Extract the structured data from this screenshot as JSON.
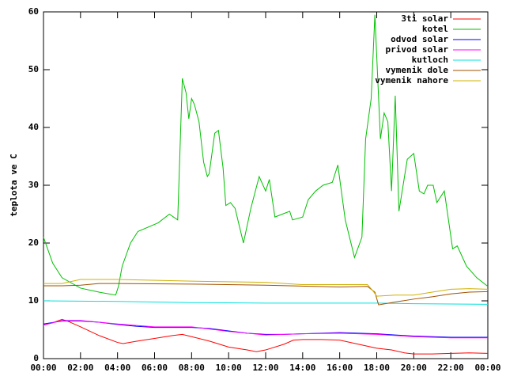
{
  "chart_data": {
    "type": "line",
    "y_label": "teplota ve C",
    "ylim": [
      0,
      60
    ],
    "yticks": [
      0,
      10,
      20,
      30,
      40,
      50,
      60
    ],
    "xlim": [
      0,
      24
    ],
    "xticks": [
      {
        "value": 0,
        "label": "00:00"
      },
      {
        "value": 2,
        "label": "02:00"
      },
      {
        "value": 4,
        "label": "04:00"
      },
      {
        "value": 6,
        "label": "06:00"
      },
      {
        "value": 8,
        "label": "08:00"
      },
      {
        "value": 10,
        "label": "10:00"
      },
      {
        "value": 12,
        "label": "12:00"
      },
      {
        "value": 14,
        "label": "14:00"
      },
      {
        "value": 16,
        "label": "16:00"
      },
      {
        "value": 18,
        "label": "18:00"
      },
      {
        "value": 20,
        "label": "20:00"
      },
      {
        "value": 22,
        "label": "22:00"
      },
      {
        "value": 24,
        "label": "00:00"
      }
    ],
    "legend": "top-right",
    "series": [
      {
        "name": "3ti solar",
        "color": "#ff0000",
        "x": [
          0,
          0.5,
          1,
          1.3,
          2,
          3,
          4,
          4.3,
          5,
          6,
          7,
          7.5,
          8,
          9,
          10,
          11,
          11.5,
          12,
          13,
          13.5,
          14,
          15,
          16,
          17,
          18,
          18.8,
          19.5,
          20,
          21,
          22,
          23,
          24
        ],
        "values": [
          5.8,
          6.2,
          6.8,
          6.5,
          5.5,
          4,
          2.8,
          2.6,
          3,
          3.5,
          4,
          4.2,
          3.8,
          3,
          2,
          1.5,
          1.2,
          1.5,
          2.5,
          3.2,
          3.3,
          3.3,
          3.2,
          2.5,
          1.8,
          1.5,
          1,
          0.8,
          0.8,
          0.9,
          1,
          0.9
        ]
      },
      {
        "name": "kotel",
        "color": "#00c000",
        "x": [
          0,
          0.5,
          1,
          2,
          3,
          3.9,
          4.05,
          4.25,
          4.7,
          5.1,
          6.2,
          6.8,
          7.25,
          7.5,
          7.7,
          7.85,
          8,
          8.15,
          8.4,
          8.65,
          8.85,
          8.95,
          9.25,
          9.45,
          9.7,
          9.85,
          10.1,
          10.35,
          10.8,
          11.2,
          11.65,
          12,
          12.2,
          12.5,
          12.9,
          13.3,
          13.45,
          14,
          14.3,
          14.7,
          15.1,
          15.6,
          15.9,
          16.3,
          16.8,
          17.2,
          17.4,
          17.7,
          17.9,
          18.2,
          18.4,
          18.6,
          18.8,
          19,
          19.2,
          19.65,
          20,
          20.3,
          20.55,
          20.75,
          21.05,
          21.25,
          21.65,
          22.1,
          22.35,
          22.85,
          23.4,
          24
        ],
        "values": [
          21,
          16.5,
          14,
          12.2,
          11.5,
          11,
          12.5,
          16,
          20,
          22,
          23.5,
          25,
          24,
          48.5,
          46,
          41.5,
          45,
          44,
          41,
          34,
          31.5,
          32,
          39,
          39.5,
          33,
          26.5,
          27,
          26,
          20,
          26,
          31.5,
          29,
          31,
          24.5,
          25,
          25.5,
          24,
          24.5,
          27.5,
          29,
          30,
          30.5,
          33.5,
          24,
          17.5,
          21,
          38,
          45,
          59.5,
          38,
          42.5,
          41,
          29,
          45.5,
          25.5,
          34.5,
          35.5,
          29,
          28.5,
          30,
          30,
          27,
          29,
          19,
          19.5,
          16,
          14,
          12.5
        ]
      },
      {
        "name": "odvod solar",
        "color": "#0000ff",
        "x": [
          0,
          1,
          2,
          3,
          4,
          5,
          6,
          7,
          8,
          9,
          10,
          11,
          12,
          13,
          14,
          15,
          16,
          17,
          18,
          19,
          20,
          21,
          22,
          23,
          24
        ],
        "values": [
          6,
          6.5,
          6.5,
          6.3,
          5.9,
          5.6,
          5.4,
          5.4,
          5.4,
          5.2,
          4.8,
          4.4,
          4.2,
          4.2,
          4.3,
          4.4,
          4.5,
          4.4,
          4.3,
          4.1,
          3.9,
          3.8,
          3.7,
          3.7,
          3.7
        ]
      },
      {
        "name": "privod solar",
        "color": "#ff00ff",
        "x": [
          0,
          1,
          2,
          4,
          6,
          8,
          10,
          12,
          14,
          16,
          18,
          20,
          22,
          24
        ],
        "values": [
          5.8,
          6.6,
          6.6,
          6,
          5.5,
          5.5,
          4.7,
          4.1,
          4.3,
          4.4,
          4.2,
          3.8,
          3.6,
          3.6
        ]
      },
      {
        "name": "kutloch",
        "color": "#00e0e0",
        "x": [
          0,
          4,
          8,
          12,
          16,
          18,
          20,
          24
        ],
        "values": [
          10,
          9.9,
          9.7,
          9.6,
          9.6,
          9.6,
          9.5,
          9.4
        ]
      },
      {
        "name": "vymenik dole",
        "color": "#a05000",
        "x": [
          0,
          1,
          2,
          3,
          4,
          8,
          12,
          16,
          17.5,
          17.9,
          18.1,
          19,
          20,
          21,
          22,
          23,
          24
        ],
        "values": [
          12.6,
          12.6,
          12.7,
          13,
          13,
          12.9,
          12.7,
          12.4,
          12.5,
          11.5,
          9.3,
          9.8,
          10.3,
          10.7,
          11.2,
          11.5,
          11.6
        ]
      },
      {
        "name": "vymenik nahore",
        "color": "#d0b000",
        "x": [
          0,
          1,
          2,
          4,
          8,
          12,
          14,
          16,
          17.5,
          17.8,
          18,
          19,
          20,
          21,
          22,
          23,
          24
        ],
        "values": [
          13,
          13,
          13.7,
          13.7,
          13.4,
          13.2,
          12.8,
          12.8,
          12.8,
          11.7,
          10.8,
          11,
          11,
          11.5,
          12,
          12.1,
          12
        ]
      }
    ]
  }
}
